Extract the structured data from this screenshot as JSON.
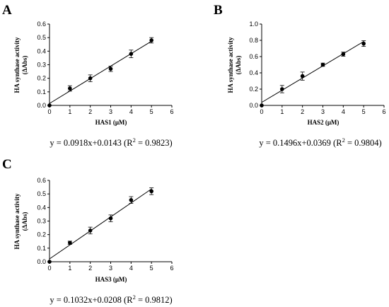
{
  "chart_data": [
    {
      "panel": "A",
      "type": "scatter",
      "xlabel": "HAS1 (μM)",
      "ylabel": "HA synthase activity",
      "ylabel2": "(ΔAbs)",
      "xlim": [
        0,
        6
      ],
      "ylim": [
        0,
        0.6
      ],
      "xticks": [
        "0",
        "1",
        "2",
        "3",
        "4",
        "5",
        "6"
      ],
      "yticks": [
        "0.0",
        "0.1",
        "0.2",
        "0.3",
        "0.4",
        "0.5",
        "0.6"
      ],
      "points": [
        {
          "x": 0,
          "y": 0.0,
          "err": 0
        },
        {
          "x": 1,
          "y": 0.125,
          "err": 0.02
        },
        {
          "x": 2,
          "y": 0.2,
          "err": 0.025
        },
        {
          "x": 3,
          "y": 0.27,
          "err": 0.02
        },
        {
          "x": 4,
          "y": 0.38,
          "err": 0.028
        },
        {
          "x": 5,
          "y": 0.48,
          "err": 0.02
        }
      ],
      "fit": {
        "slope": 0.0918,
        "intercept": 0.0143
      },
      "equation_main": "y = 0.0918x+0.0143 (R",
      "equation_sup": "2",
      "equation_tail": " = 0.9823)"
    },
    {
      "panel": "B",
      "type": "scatter",
      "xlabel": "HAS2 (μM)",
      "ylabel": "HA synthase activity",
      "ylabel2": "(ΔAbs)",
      "xlim": [
        0,
        6
      ],
      "ylim": [
        0,
        1.0
      ],
      "xticks": [
        "0",
        "1",
        "2",
        "3",
        "4",
        "5",
        "6"
      ],
      "yticks": [
        "0.0",
        "0.2",
        "0.4",
        "0.6",
        "0.8",
        "1.0"
      ],
      "points": [
        {
          "x": 0,
          "y": 0.0,
          "err": 0
        },
        {
          "x": 1,
          "y": 0.2,
          "err": 0.045
        },
        {
          "x": 2,
          "y": 0.36,
          "err": 0.05
        },
        {
          "x": 3,
          "y": 0.5,
          "err": 0.02
        },
        {
          "x": 4,
          "y": 0.63,
          "err": 0.025
        },
        {
          "x": 5,
          "y": 0.76,
          "err": 0.035
        }
      ],
      "fit": {
        "slope": 0.1496,
        "intercept": 0.0369
      },
      "equation_main": "y = 0.1496x+0.0369 (R",
      "equation_sup": "2",
      "equation_tail": " = 0.9804)"
    },
    {
      "panel": "C",
      "type": "scatter",
      "xlabel": "HAS3 (μM)",
      "ylabel": "HA synthase activity",
      "ylabel2": "(ΔAbs)",
      "xlim": [
        0,
        6
      ],
      "ylim": [
        0,
        0.6
      ],
      "xticks": [
        "0",
        "1",
        "2",
        "3",
        "4",
        "5",
        "6"
      ],
      "yticks": [
        "0.0",
        "0.1",
        "0.2",
        "0.3",
        "0.4",
        "0.5",
        "0.6"
      ],
      "points": [
        {
          "x": 0,
          "y": 0.0,
          "err": 0
        },
        {
          "x": 1,
          "y": 0.14,
          "err": 0.012
        },
        {
          "x": 2,
          "y": 0.23,
          "err": 0.025
        },
        {
          "x": 3,
          "y": 0.32,
          "err": 0.025
        },
        {
          "x": 4,
          "y": 0.455,
          "err": 0.025
        },
        {
          "x": 5,
          "y": 0.52,
          "err": 0.025
        }
      ],
      "fit": {
        "slope": 0.1032,
        "intercept": 0.0208
      },
      "equation_main": "y = 0.1032x+0.0208 (R",
      "equation_sup": "2",
      "equation_tail": " = 0.9812)"
    }
  ]
}
